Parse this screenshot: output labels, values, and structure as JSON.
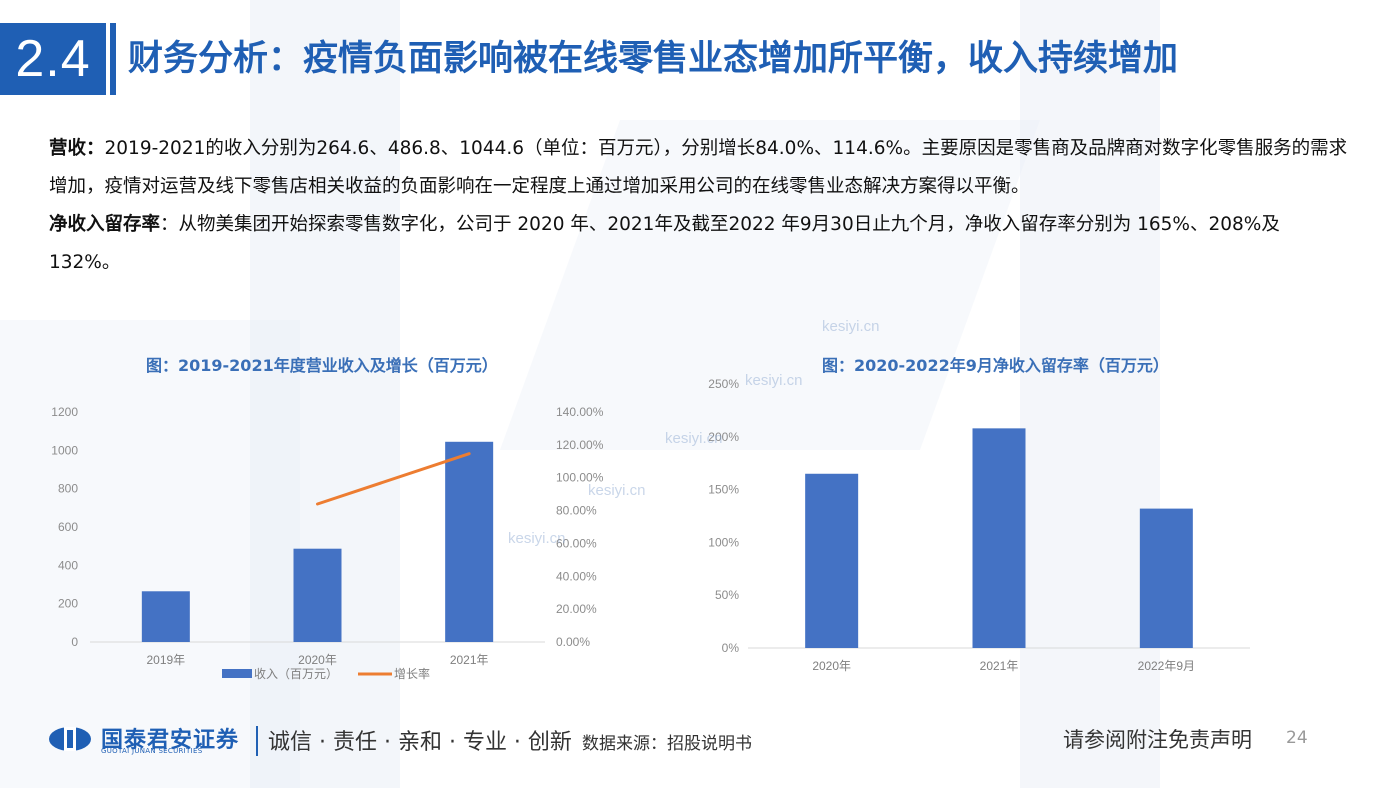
{
  "header": {
    "section_number": "2.4",
    "title": "财务分析：疫情负面影响被在线零售业态增加所平衡，收入持续增加"
  },
  "body": {
    "p1_label": "营收：",
    "p1_text": "2019-2021的收入分别为264.6、486.8、1044.6（单位：百万元），分别增长84.0%、114.6%。主要原因是零售商及品牌商对数字化零售服务的需求增加，疫情对运营及线下零售店相关收益的负面影响在一定程度上通过增加采用公司的在线零售业态解决方案得以平衡。",
    "p2_label": "净收入留存率",
    "p2_text": "：从物美集团开始探索零售数字化，公司于 2020 年、2021年及截至2022 年9月30日止九个月，净收入留存率分别为 165%、208%及 132%。"
  },
  "watermark": "kesiyi.cn",
  "colors": {
    "brand": "#1f5fb4",
    "bar": "#4472c4",
    "line": "#ed7d31"
  },
  "chart_data": [
    {
      "type": "bar",
      "title": "图：2019-2021年度营业收入及增长（百万元）",
      "categories": [
        "2019年",
        "2020年",
        "2021年"
      ],
      "series": [
        {
          "name": "收入（百万元）",
          "type": "bar",
          "axis": "left",
          "values": [
            264.6,
            486.8,
            1044.6
          ]
        },
        {
          "name": "增长率",
          "type": "line",
          "axis": "right",
          "values": [
            null,
            84.0,
            114.6
          ]
        }
      ],
      "y_left": {
        "ylim": [
          0,
          1200
        ],
        "ticks": [
          0,
          200,
          400,
          600,
          800,
          1000,
          1200
        ],
        "tick_labels": [
          "0",
          "200",
          "400",
          "600",
          "800",
          "1000",
          "1200"
        ]
      },
      "y_right": {
        "ylim": [
          0,
          140
        ],
        "ticks": [
          0,
          20,
          40,
          60,
          80,
          100,
          120,
          140
        ],
        "tick_labels": [
          "0.00%",
          "20.00%",
          "40.00%",
          "60.00%",
          "80.00%",
          "100.00%",
          "120.00%",
          "140.00%"
        ]
      },
      "grid": false,
      "legend": "bottom"
    },
    {
      "type": "bar",
      "title": "图：2020-2022年9月净收入留存率（百万元）",
      "categories": [
        "2020年",
        "2021年",
        "2022年9月"
      ],
      "values": [
        165,
        208,
        132
      ],
      "ylim": [
        0,
        250
      ],
      "ticks": [
        0,
        50,
        100,
        150,
        200,
        250
      ],
      "tick_labels": [
        "0%",
        "50%",
        "100%",
        "150%",
        "200%",
        "250%"
      ],
      "grid": false,
      "legend": "none"
    }
  ],
  "footer": {
    "logo_cn": "国泰君安证券",
    "logo_en": "GUOTAI JUNAN SECURITIES",
    "slogan": "诚信 · 责任 · 亲和 · 专业 · 创新",
    "source": "数据来源：招股说明书",
    "disclaimer": "请参阅附注免责声明",
    "page_number": "24"
  }
}
